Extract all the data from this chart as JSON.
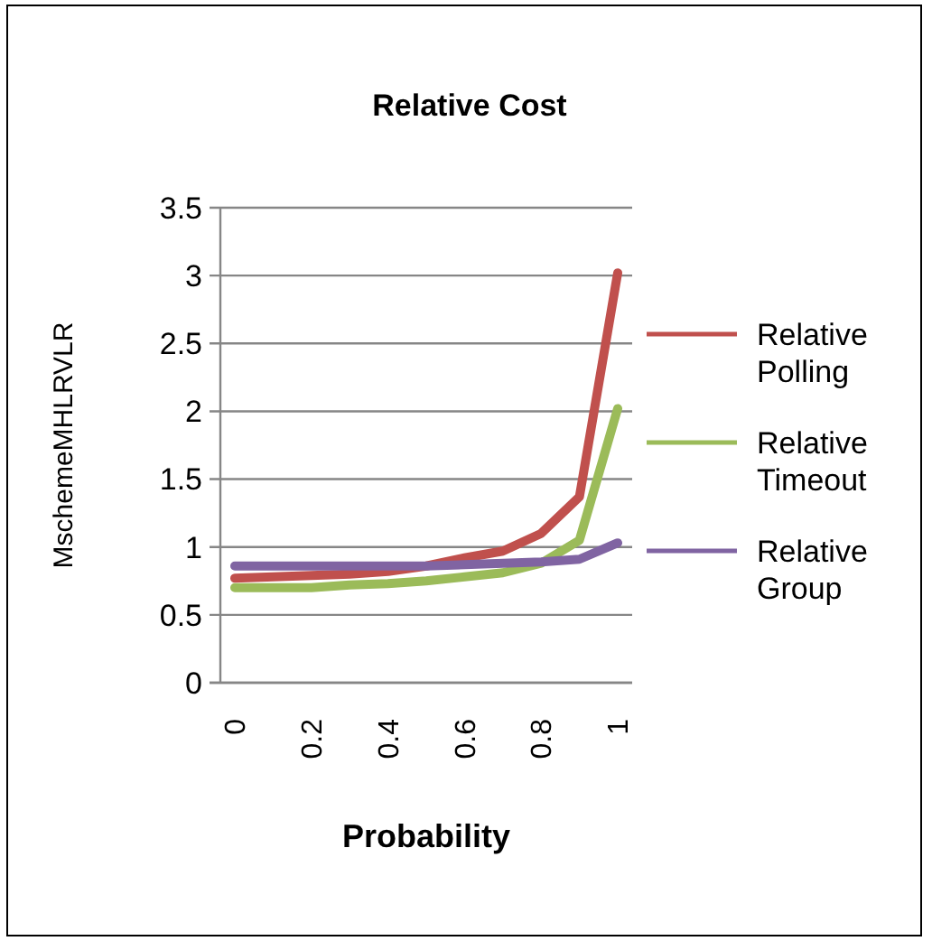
{
  "chart_data": {
    "type": "line",
    "title": "Relative Cost",
    "xlabel": "Probability",
    "ylabel": "MschemeMHLRVLR",
    "categories": [
      "0",
      null,
      "0.2",
      null,
      "0.4",
      null,
      "0.6",
      null,
      "0.8",
      null,
      "1"
    ],
    "series": [
      {
        "name": "Relative Polling",
        "color": "#c0504d",
        "values": [
          0.77,
          0.78,
          0.79,
          0.8,
          0.82,
          0.86,
          0.92,
          0.97,
          1.1,
          1.37,
          3.02
        ]
      },
      {
        "name": "Relative Timeout",
        "color": "#9bbb59",
        "values": [
          0.7,
          0.7,
          0.7,
          0.72,
          0.73,
          0.75,
          0.78,
          0.81,
          0.88,
          1.05,
          2.02
        ]
      },
      {
        "name": "Relative Group",
        "color": "#8064a2",
        "values": [
          0.86,
          0.86,
          0.86,
          0.86,
          0.86,
          0.86,
          0.87,
          0.88,
          0.89,
          0.91,
          1.03
        ]
      }
    ],
    "ylim": [
      0,
      3.5
    ],
    "yticks": [
      0,
      0.5,
      1,
      1.5,
      2,
      2.5,
      3,
      3.5
    ],
    "grid": "y",
    "legend": "right",
    "marker": "none",
    "line_style": "solid"
  }
}
